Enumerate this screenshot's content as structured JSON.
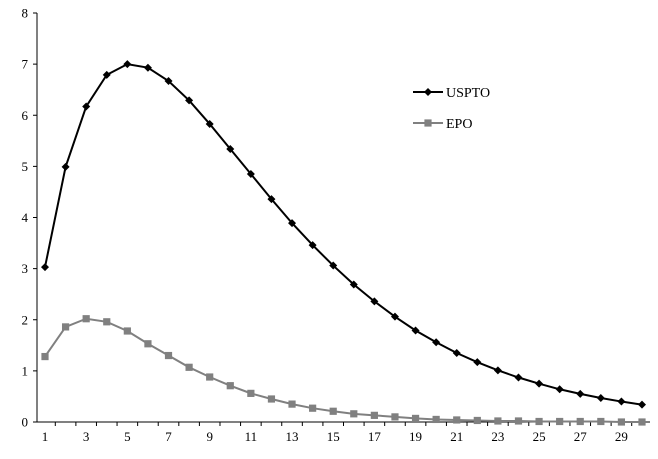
{
  "chart_data": {
    "type": "line",
    "title": "",
    "xlabel": "",
    "ylabel": "",
    "x": [
      1,
      2,
      3,
      4,
      5,
      6,
      7,
      8,
      9,
      10,
      11,
      12,
      13,
      14,
      15,
      16,
      17,
      18,
      19,
      20,
      21,
      22,
      23,
      24,
      25,
      26,
      27,
      28,
      29,
      30
    ],
    "x_tick_labels": [
      "1",
      "3",
      "5",
      "7",
      "9",
      "11",
      "13",
      "15",
      "17",
      "19",
      "21",
      "23",
      "25",
      "27",
      "29"
    ],
    "y_tick_labels": [
      "0",
      "1",
      "2",
      "3",
      "4",
      "5",
      "6",
      "7",
      "8"
    ],
    "ylim": [
      0,
      8
    ],
    "xlim": [
      1,
      30
    ],
    "grid": false,
    "legend_position": "top-right",
    "series": [
      {
        "name": "USPTO",
        "color": "#000000",
        "marker": "diamond",
        "values": [
          3.03,
          4.99,
          6.17,
          6.79,
          7.0,
          6.93,
          6.67,
          6.29,
          5.83,
          5.34,
          4.85,
          4.36,
          3.89,
          3.46,
          3.06,
          2.69,
          2.36,
          2.06,
          1.79,
          1.56,
          1.35,
          1.17,
          1.01,
          0.87,
          0.75,
          0.64,
          0.55,
          0.47,
          0.4,
          0.34
        ]
      },
      {
        "name": "EPO",
        "color": "#808080",
        "marker": "square",
        "values": [
          1.28,
          1.86,
          2.02,
          1.96,
          1.78,
          1.53,
          1.3,
          1.07,
          0.88,
          0.71,
          0.56,
          0.45,
          0.35,
          0.27,
          0.21,
          0.16,
          0.13,
          0.1,
          0.07,
          0.05,
          0.04,
          0.03,
          0.02,
          0.02,
          0.01,
          0.01,
          0.01,
          0.01,
          0.0,
          0.0
        ]
      }
    ]
  }
}
